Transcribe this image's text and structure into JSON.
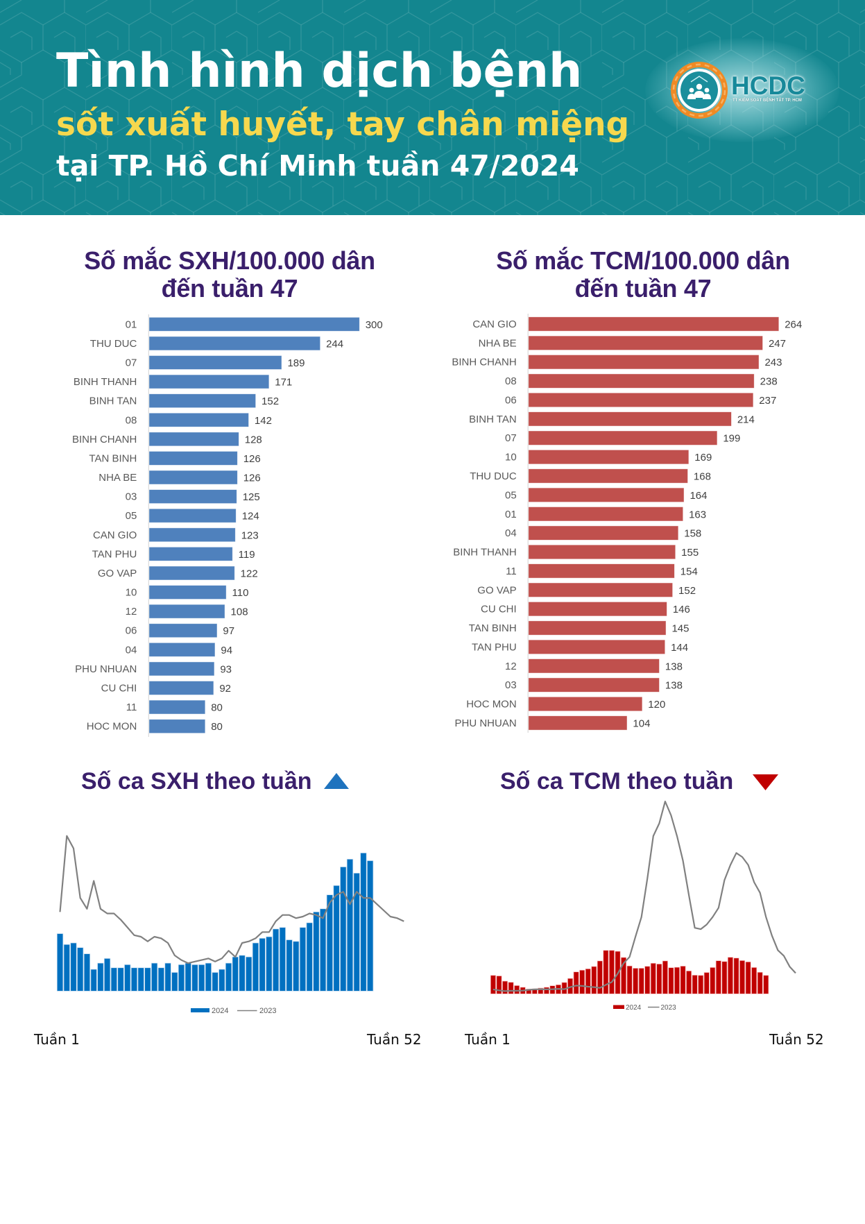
{
  "header": {
    "title_line1": "Tình hình dịch bệnh",
    "title_line2": "sốt xuất huyết, tay chân miệng",
    "title_line3": "tại TP. Hồ Chí Minh tuần 47/2024",
    "logo": {
      "icon": "community-health-emblem-icon",
      "text": "HCDC",
      "subtext": "TT KIỂM SOÁT BỆNH TẬT TP. HCM"
    }
  },
  "colors": {
    "header_bg": "#13868F",
    "title_white": "#FFFFFF",
    "title_yellow": "#F6D84E",
    "heading_purple": "#3A1F6B",
    "sxh_rate_bar": "#4F81BD",
    "tcm_rate_bar": "#C0504D",
    "sxh_weekly_bar": "#0070C0",
    "tcm_weekly_bar": "#C00000",
    "line_2023": "#808080",
    "trend_up": "#1E73BE",
    "trend_down": "#C00000",
    "axis_label": "#595959",
    "logo_orange": "#F08A24",
    "logo_teal": "#17899A"
  },
  "chart_data": [
    {
      "type": "bar",
      "orientation": "horizontal",
      "title": "Số mắc SXH/100.000 dân",
      "subtitle": "đến tuần 47",
      "xlabel": "",
      "ylabel": "",
      "xlim": [
        0,
        300
      ],
      "grid": false,
      "data_labels": true,
      "categories": [
        "01",
        "THU DUC",
        "07",
        "BINH THANH",
        "BINH TAN",
        "08",
        "BINH CHANH",
        "TAN BINH",
        "NHA BE",
        "03",
        "05",
        "CAN GIO",
        "TAN PHU",
        "GO VAP",
        "10",
        "12",
        "06",
        "04",
        "PHU NHUAN",
        "CU CHI",
        "11",
        "HOC MON"
      ],
      "values": [
        300,
        244,
        189,
        171,
        152,
        142,
        128,
        126,
        126,
        125,
        124,
        123,
        119,
        122,
        110,
        108,
        97,
        94,
        93,
        92,
        80,
        80
      ]
    },
    {
      "type": "bar",
      "orientation": "horizontal",
      "title": "Số mắc TCM/100.000 dân",
      "subtitle": "đến tuần 47",
      "xlabel": "",
      "ylabel": "",
      "xlim": [
        0,
        264
      ],
      "grid": false,
      "data_labels": true,
      "categories": [
        "CAN GIO",
        "NHA BE",
        "BINH CHANH",
        "08",
        "06",
        "BINH TAN",
        "07",
        "10",
        "THU DUC",
        "05",
        "01",
        "04",
        "BINH THANH",
        "11",
        "GO VAP",
        "CU CHI",
        "TAN BINH",
        "TAN PHU",
        "12",
        "03",
        "HOC MON",
        "PHU NHUAN"
      ],
      "values": [
        264,
        247,
        243,
        238,
        237,
        214,
        199,
        169,
        168,
        164,
        163,
        158,
        155,
        154,
        152,
        146,
        145,
        144,
        138,
        138,
        120,
        104
      ]
    },
    {
      "type": "bar+line",
      "title": "Số ca SXH theo tuần",
      "trend": "up",
      "trend_icon": "triangle-up-icon",
      "x_range": [
        1,
        52
      ],
      "x_start_label": "Tuần 1",
      "x_end_label": "Tuần 52",
      "y_axis_note": "no y-axis labels shown; values are relative (2023 peak = 100)",
      "ylim": [
        0,
        100
      ],
      "grid": false,
      "legend": [
        "2024",
        "2023"
      ],
      "legend_position": "bottom",
      "series": [
        {
          "name": "2024",
          "type": "bar",
          "values": [
            37,
            30,
            31,
            28,
            24,
            14,
            18,
            21,
            15,
            15,
            17,
            15,
            15,
            15,
            18,
            15,
            18,
            12,
            17,
            18,
            17,
            17,
            18,
            12,
            14,
            18,
            22,
            23,
            22,
            31,
            34,
            35,
            40,
            41,
            33,
            32,
            41,
            44,
            51,
            53,
            62,
            68,
            80,
            85,
            76,
            89,
            84
          ]
        },
        {
          "name": "2023",
          "type": "line",
          "values": [
            51,
            100,
            92,
            60,
            53,
            71,
            53,
            50,
            50,
            46,
            41,
            36,
            35,
            32,
            35,
            34,
            31,
            23,
            20,
            18,
            19,
            20,
            21,
            19,
            21,
            26,
            22,
            31,
            32,
            34,
            38,
            38,
            45,
            49,
            49,
            47,
            48,
            50,
            49,
            47,
            57,
            62,
            64,
            56,
            64,
            60,
            60,
            56,
            52,
            48,
            47,
            45
          ]
        }
      ]
    },
    {
      "type": "bar+line",
      "title": "Số ca TCM theo tuần",
      "trend": "down",
      "trend_icon": "triangle-down-icon",
      "x_range": [
        1,
        52
      ],
      "x_start_label": "Tuần 1",
      "x_end_label": "Tuần 52",
      "y_axis_note": "no y-axis labels shown; values are relative (2023 peak = 100)",
      "ylim": [
        0,
        100
      ],
      "grid": false,
      "legend": [
        "2024",
        "2023"
      ],
      "legend_position": "bottom",
      "series": [
        {
          "name": "2024",
          "type": "bar",
          "values": [
            9.6,
            9.3,
            6.6,
            6.0,
            4.3,
            3.4,
            2.5,
            2.6,
            3.0,
            3.4,
            4.2,
            4.7,
            5.9,
            8.0,
            11.4,
            12.3,
            13.0,
            14.2,
            17.1,
            22.6,
            22.6,
            22.1,
            18.9,
            14.5,
            13.3,
            13.3,
            14.3,
            15.9,
            15.5,
            17.1,
            13.6,
            13.8,
            14.4,
            11.9,
            9.7,
            9.6,
            11.1,
            13.7,
            17.2,
            16.8,
            19.0,
            18.6,
            17.3,
            16.6,
            13.7,
            11.2,
            9.6
          ]
        },
        {
          "name": "2023",
          "type": "line",
          "values": [
            2.3,
            1.8,
            1.4,
            1.6,
            1.6,
            1.7,
            2.1,
            2.3,
            2.4,
            2.3,
            2.4,
            2.6,
            2.4,
            3.5,
            4.3,
            4.1,
            3.7,
            3.5,
            3.1,
            4.7,
            6.1,
            10.5,
            15.9,
            19.2,
            29.7,
            39.9,
            59.8,
            82.0,
            88.6,
            100,
            92.8,
            82.0,
            69.3,
            51.3,
            34.3,
            33.6,
            36.0,
            39.9,
            44.7,
            59.1,
            67.0,
            73.2,
            71.1,
            67.0,
            58.0,
            52.5,
            39.9,
            30.3,
            22.7,
            19.8,
            14.1,
            10.8
          ]
        }
      ]
    }
  ]
}
